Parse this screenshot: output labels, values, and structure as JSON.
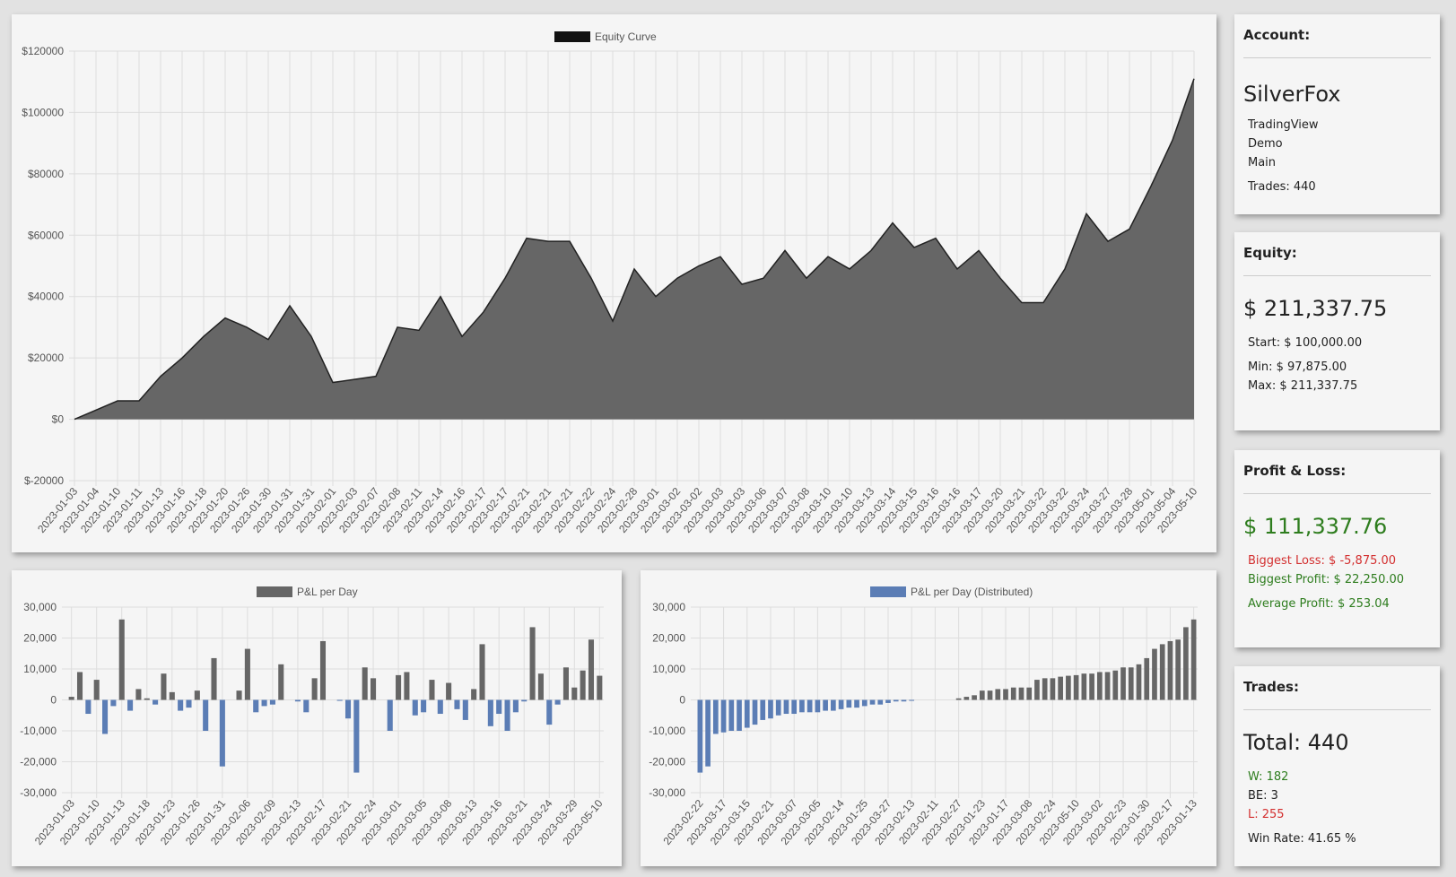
{
  "chart_data": [
    {
      "type": "area",
      "name": "Equity Curve",
      "color": "#666666",
      "line_color": "#222222",
      "legend_color": "#111111",
      "grid": true,
      "categories": [
        "2023-01-03",
        "2023-01-04",
        "2023-01-10",
        "2023-01-11",
        "2023-01-13",
        "2023-01-16",
        "2023-01-18",
        "2023-01-20",
        "2023-01-26",
        "2023-01-30",
        "2023-01-31",
        "2023-01-31",
        "2023-02-01",
        "2023-02-03",
        "2023-02-07",
        "2023-02-08",
        "2023-02-11",
        "2023-02-14",
        "2023-02-16",
        "2023-02-17",
        "2023-02-17",
        "2023-02-21",
        "2023-02-21",
        "2023-02-21",
        "2023-02-22",
        "2023-02-24",
        "2023-02-28",
        "2023-03-01",
        "2023-03-02",
        "2023-03-02",
        "2023-03-03",
        "2023-03-03",
        "2023-03-06",
        "2023-03-07",
        "2023-03-08",
        "2023-03-10",
        "2023-03-10",
        "2023-03-13",
        "2023-03-14",
        "2023-03-15",
        "2023-03-16",
        "2023-03-16",
        "2023-03-17",
        "2023-03-20",
        "2023-03-21",
        "2023-03-22",
        "2023-03-22",
        "2023-03-24",
        "2023-03-27",
        "2023-03-28",
        "2023-05-01",
        "2023-05-04",
        "2023-05-10"
      ],
      "values": [
        0,
        3000,
        6000,
        6000,
        14000,
        20000,
        27000,
        33000,
        30000,
        26000,
        37000,
        27000,
        12000,
        13000,
        14000,
        30000,
        29000,
        40000,
        27000,
        35000,
        46000,
        59000,
        58000,
        58000,
        46000,
        32000,
        49000,
        40000,
        46000,
        50000,
        53000,
        44000,
        46000,
        55000,
        46000,
        53000,
        49000,
        55000,
        64000,
        56000,
        59000,
        49000,
        55000,
        46000,
        38000,
        38000,
        49000,
        67000,
        58000,
        62000,
        76000,
        91000,
        111000
      ],
      "ylim": [
        -20000,
        120000
      ],
      "yticks": [
        {
          "value": -20000,
          "label": "$-20000"
        },
        {
          "value": 0,
          "label": "$0"
        },
        {
          "value": 20000,
          "label": "$20000"
        },
        {
          "value": 40000,
          "label": "$40000"
        },
        {
          "value": 60000,
          "label": "$60000"
        },
        {
          "value": 80000,
          "label": "$80000"
        },
        {
          "value": 100000,
          "label": "$100000"
        },
        {
          "value": 120000,
          "label": "$120000"
        }
      ]
    },
    {
      "type": "bar",
      "name": "P&L per Day",
      "positive_color": "#666666",
      "negative_color": "#5b7db5",
      "legend_color": "#666666",
      "grid": true,
      "categories": [
        "2023-01-03",
        null,
        null,
        "2023-01-10",
        null,
        null,
        "2023-01-13",
        null,
        null,
        "2023-01-18",
        null,
        null,
        "2023-01-23",
        null,
        null,
        "2023-01-26",
        null,
        null,
        "2023-01-31",
        null,
        null,
        "2023-02-06",
        null,
        null,
        "2023-02-09",
        null,
        null,
        "2023-02-13",
        null,
        null,
        "2023-02-17",
        null,
        null,
        "2023-02-21",
        null,
        null,
        "2023-02-24",
        null,
        null,
        "2023-03-01",
        null,
        null,
        "2023-03-05",
        null,
        null,
        "2023-03-08",
        null,
        null,
        "2023-03-13",
        null,
        null,
        "2023-03-16",
        null,
        null,
        "2023-03-21",
        null,
        null,
        "2023-03-24",
        null,
        null,
        "2023-03-29",
        null,
        null,
        "2023-05-10"
      ],
      "values": [
        1000,
        9000,
        -4500,
        6500,
        -11000,
        -2000,
        26000,
        -3500,
        3500,
        500,
        -1500,
        8500,
        2500,
        -3500,
        -2500,
        3000,
        -10000,
        13500,
        -21500,
        0,
        3000,
        16500,
        -4000,
        -2000,
        -1500,
        11500,
        0,
        -500,
        -4000,
        7000,
        19000,
        0,
        -300,
        -6000,
        -23500,
        10500,
        7000,
        0,
        -10000,
        8000,
        9000,
        -5000,
        -4000,
        6500,
        -4500,
        5500,
        -3000,
        -6500,
        3500,
        18000,
        -8500,
        -4500,
        -10000,
        -4000,
        -500,
        23500,
        8500,
        -8000,
        -1500,
        10500,
        4000,
        9500,
        19500,
        7800
      ],
      "ylim": [
        -30000,
        30000
      ],
      "yticks": [
        {
          "value": -30000,
          "label": "-30,000"
        },
        {
          "value": -20000,
          "label": "-20,000"
        },
        {
          "value": -10000,
          "label": "-10,000"
        },
        0,
        {
          "value": 10000,
          "label": "10,000"
        },
        {
          "value": 20000,
          "label": "20,000"
        },
        {
          "value": 30000,
          "label": "30,000"
        }
      ]
    },
    {
      "type": "bar",
      "name": "P&L per Day (Distributed)",
      "positive_color": "#666666",
      "negative_color": "#5b7db5",
      "legend_color": "#5b7db5",
      "grid": true,
      "categories": [
        "2023-02-22",
        null,
        null,
        "2023-03-17",
        null,
        null,
        "2023-03-15",
        null,
        null,
        "2023-02-21",
        null,
        null,
        "2023-03-07",
        null,
        null,
        "2023-03-05",
        null,
        null,
        "2023-02-14",
        null,
        null,
        "2023-01-25",
        null,
        null,
        "2023-03-27",
        null,
        null,
        "2023-02-13",
        null,
        null,
        "2023-02-11",
        null,
        null,
        "2023-02-27",
        null,
        null,
        "2023-01-23",
        null,
        null,
        "2023-01-17",
        null,
        null,
        "2023-03-08",
        null,
        null,
        "2023-02-24",
        null,
        null,
        "2023-05-10",
        null,
        null,
        "2023-03-02",
        null,
        null,
        "2023-02-23",
        null,
        null,
        "2023-01-30",
        null,
        null,
        "2023-02-17",
        null,
        null,
        "2023-01-13"
      ],
      "values": [
        -23500,
        -21500,
        -11000,
        -10500,
        -10000,
        -10000,
        -9000,
        -8000,
        -6500,
        -6000,
        -5000,
        -4500,
        -4500,
        -4000,
        -4000,
        -4000,
        -3500,
        -3500,
        -3000,
        -2500,
        -2500,
        -2000,
        -1500,
        -1500,
        -1000,
        -500,
        -500,
        -300,
        0,
        0,
        0,
        0,
        0,
        500,
        1000,
        1500,
        3000,
        3000,
        3500,
        3500,
        4000,
        4000,
        4000,
        6500,
        7000,
        7000,
        7500,
        7800,
        8000,
        8500,
        8500,
        9000,
        9000,
        9500,
        10500,
        10500,
        11500,
        13500,
        16500,
        18000,
        19000,
        19500,
        23500,
        26000
      ],
      "ylim": [
        -30000,
        30000
      ],
      "yticks": [
        {
          "value": -30000,
          "label": "-30,000"
        },
        {
          "value": -20000,
          "label": "-20,000"
        },
        {
          "value": -10000,
          "label": "-10,000"
        },
        0,
        {
          "value": 10000,
          "label": "10,000"
        },
        {
          "value": 20000,
          "label": "20,000"
        },
        {
          "value": 30000,
          "label": "30,000"
        }
      ]
    }
  ],
  "panels": {
    "account": {
      "heading": "Account:",
      "name": "SilverFox",
      "lines": [
        "TradingView",
        "Demo",
        "Main"
      ],
      "trades": "Trades: 440"
    },
    "equity": {
      "heading": "Equity:",
      "value": "$ 211,337.75",
      "start": "Start: $ 100,000.00",
      "min": "Min: $ 97,875.00",
      "max": "Max: $ 211,337.75"
    },
    "pnl": {
      "heading": "Profit & Loss:",
      "value": "$ 111,337.76",
      "biggest_loss": "Biggest Loss: $ -5,875.00",
      "biggest_profit": "Biggest Profit: $ 22,250.00",
      "average": "Average Profit: $ 253.04"
    },
    "trades": {
      "heading": "Trades:",
      "total": "Total: 440",
      "wins": "W: 182",
      "breakeven": "BE: 3",
      "losses": "L: 255",
      "win_rate": "Win Rate: 41.65 %"
    }
  }
}
